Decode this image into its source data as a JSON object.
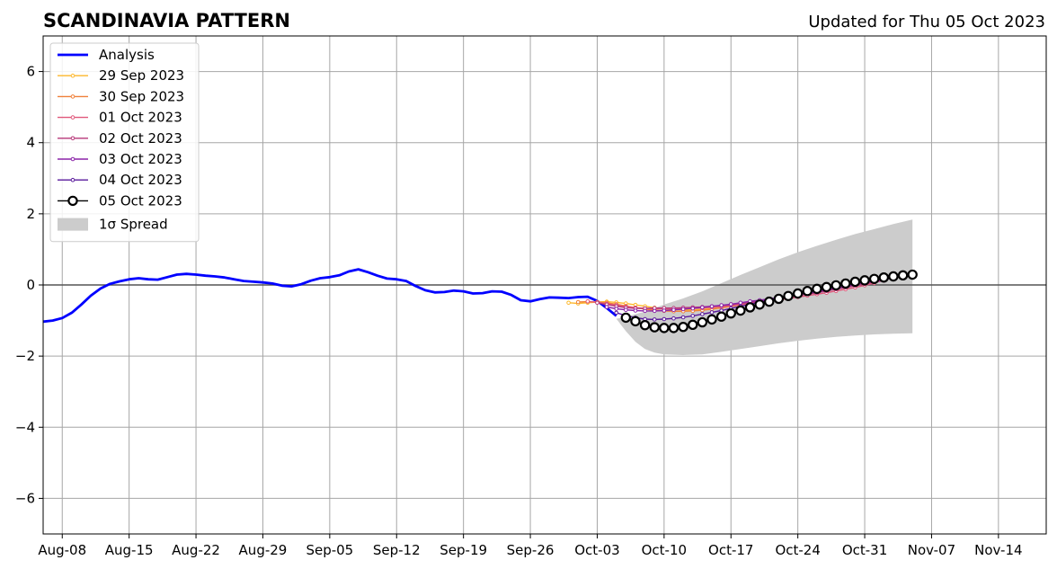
{
  "chart_data": {
    "type": "line",
    "title": "SCANDINAVIA PATTERN",
    "subtitle": "Updated for Thu 05 Oct 2023",
    "xlabel": "",
    "ylabel": "",
    "x_start_date": "2023-08-06",
    "xlim": [
      "2023-08-06",
      "2023-11-19"
    ],
    "ylim": [
      -7,
      7
    ],
    "yticks": [
      -6,
      -4,
      -2,
      0,
      2,
      4,
      6
    ],
    "ytick_labels": [
      "−6",
      "−4",
      "−2",
      "0",
      "2",
      "4",
      "6"
    ],
    "xticks": [
      "2023-08-08",
      "2023-08-15",
      "2023-08-22",
      "2023-08-29",
      "2023-09-05",
      "2023-09-12",
      "2023-09-19",
      "2023-09-26",
      "2023-10-03",
      "2023-10-10",
      "2023-10-17",
      "2023-10-24",
      "2023-10-31",
      "2023-11-07",
      "2023-11-14"
    ],
    "xtick_labels": [
      "Aug-08",
      "Aug-15",
      "Aug-22",
      "Aug-29",
      "Sep-05",
      "Sep-12",
      "Sep-19",
      "Sep-26",
      "Oct-03",
      "Oct-10",
      "Oct-17",
      "Oct-24",
      "Oct-31",
      "Nov-07",
      "Nov-14"
    ],
    "grid": true,
    "zero_line": true,
    "legend_position": "top-left",
    "series": [
      {
        "name": "Analysis",
        "color": "#0000ff",
        "style": "thick-line",
        "x": [
          "2023-08-06",
          "2023-08-07",
          "2023-08-08",
          "2023-08-09",
          "2023-08-10",
          "2023-08-11",
          "2023-08-12",
          "2023-08-13",
          "2023-08-14",
          "2023-08-15",
          "2023-08-16",
          "2023-08-17",
          "2023-08-18",
          "2023-08-19",
          "2023-08-20",
          "2023-08-21",
          "2023-08-22",
          "2023-08-23",
          "2023-08-24",
          "2023-08-25",
          "2023-08-26",
          "2023-08-27",
          "2023-08-28",
          "2023-08-29",
          "2023-08-30",
          "2023-08-31",
          "2023-09-01",
          "2023-09-02",
          "2023-09-03",
          "2023-09-04",
          "2023-09-05",
          "2023-09-06",
          "2023-09-07",
          "2023-09-08",
          "2023-09-09",
          "2023-09-10",
          "2023-09-11",
          "2023-09-12",
          "2023-09-13",
          "2023-09-14",
          "2023-09-15",
          "2023-09-16",
          "2023-09-17",
          "2023-09-18",
          "2023-09-19",
          "2023-09-20",
          "2023-09-21",
          "2023-09-22",
          "2023-09-23",
          "2023-09-24",
          "2023-09-25",
          "2023-09-26",
          "2023-09-27",
          "2023-09-28",
          "2023-09-29",
          "2023-09-30",
          "2023-10-01",
          "2023-10-02",
          "2023-10-03",
          "2023-10-04",
          "2023-10-05"
        ],
        "y": [
          -1.03,
          -1.0,
          -0.93,
          -0.78,
          -0.55,
          -0.3,
          -0.1,
          0.03,
          0.1,
          0.16,
          0.19,
          0.16,
          0.15,
          0.22,
          0.29,
          0.31,
          0.29,
          0.26,
          0.24,
          0.21,
          0.16,
          0.11,
          0.09,
          0.07,
          0.04,
          -0.02,
          -0.04,
          0.02,
          0.12,
          0.19,
          0.22,
          0.27,
          0.38,
          0.44,
          0.36,
          0.26,
          0.18,
          0.16,
          0.11,
          -0.03,
          -0.15,
          -0.21,
          -0.2,
          -0.16,
          -0.18,
          -0.24,
          -0.23,
          -0.18,
          -0.19,
          -0.28,
          -0.43,
          -0.46,
          -0.4,
          -0.35,
          -0.36,
          -0.37,
          -0.34,
          -0.33,
          -0.45,
          -0.65,
          -0.87
        ]
      },
      {
        "name": "29 Sep 2023",
        "color": "#fdb72b",
        "style": "thin-marker",
        "x": [
          "2023-09-30",
          "2023-10-01",
          "2023-10-02",
          "2023-10-03",
          "2023-10-04",
          "2023-10-05",
          "2023-10-06",
          "2023-10-07",
          "2023-10-08",
          "2023-10-09",
          "2023-10-10",
          "2023-10-11",
          "2023-10-12",
          "2023-10-13",
          "2023-10-14",
          "2023-10-15",
          "2023-10-16",
          "2023-10-17",
          "2023-10-18",
          "2023-10-19",
          "2023-10-20",
          "2023-10-21",
          "2023-10-22"
        ],
        "y": [
          -0.5,
          -0.52,
          -0.5,
          -0.48,
          -0.47,
          -0.49,
          -0.52,
          -0.56,
          -0.6,
          -0.64,
          -0.67,
          -0.69,
          -0.7,
          -0.7,
          -0.69,
          -0.67,
          -0.64,
          -0.6,
          -0.56,
          -0.52,
          -0.48,
          -0.44,
          -0.4
        ]
      },
      {
        "name": "30 Sep 2023",
        "color": "#f0803a",
        "style": "thin-marker",
        "x": [
          "2023-10-01",
          "2023-10-02",
          "2023-10-03",
          "2023-10-04",
          "2023-10-05",
          "2023-10-06",
          "2023-10-07",
          "2023-10-08",
          "2023-10-09",
          "2023-10-10",
          "2023-10-11",
          "2023-10-12",
          "2023-10-13",
          "2023-10-14",
          "2023-10-15",
          "2023-10-16",
          "2023-10-17",
          "2023-10-18",
          "2023-10-19",
          "2023-10-20",
          "2023-10-21",
          "2023-10-22",
          "2023-10-23"
        ],
        "y": [
          -0.48,
          -0.47,
          -0.48,
          -0.5,
          -0.54,
          -0.59,
          -0.64,
          -0.68,
          -0.71,
          -0.73,
          -0.74,
          -0.74,
          -0.73,
          -0.71,
          -0.68,
          -0.64,
          -0.6,
          -0.56,
          -0.52,
          -0.48,
          -0.44,
          -0.41,
          -0.38
        ]
      },
      {
        "name": "01 Oct 2023",
        "color": "#e0577a",
        "style": "thin-marker",
        "x": [
          "2023-10-02",
          "2023-10-03",
          "2023-10-04",
          "2023-10-05",
          "2023-10-06",
          "2023-10-07",
          "2023-10-08",
          "2023-10-09",
          "2023-10-10",
          "2023-10-11",
          "2023-10-12",
          "2023-10-13",
          "2023-10-14",
          "2023-10-15",
          "2023-10-16",
          "2023-10-17",
          "2023-10-18",
          "2023-10-19",
          "2023-10-20",
          "2023-10-21",
          "2023-10-22",
          "2023-10-23",
          "2023-10-24",
          "2023-10-25",
          "2023-10-26",
          "2023-10-27",
          "2023-10-28",
          "2023-10-29",
          "2023-10-30",
          "2023-10-31",
          "2023-11-01"
        ],
        "y": [
          -0.46,
          -0.49,
          -0.53,
          -0.57,
          -0.61,
          -0.64,
          -0.66,
          -0.67,
          -0.67,
          -0.67,
          -0.67,
          -0.66,
          -0.65,
          -0.63,
          -0.61,
          -0.58,
          -0.55,
          -0.52,
          -0.49,
          -0.46,
          -0.42,
          -0.38,
          -0.34,
          -0.3,
          -0.26,
          -0.22,
          -0.17,
          -0.12,
          -0.07,
          -0.01,
          0.05
        ]
      },
      {
        "name": "02 Oct 2023",
        "color": "#b73779",
        "style": "thin-marker",
        "x": [
          "2023-10-03",
          "2023-10-04",
          "2023-10-05",
          "2023-10-06",
          "2023-10-07",
          "2023-10-08",
          "2023-10-09",
          "2023-10-10",
          "2023-10-11",
          "2023-10-12",
          "2023-10-13",
          "2023-10-14",
          "2023-10-15",
          "2023-10-16",
          "2023-10-17",
          "2023-10-18",
          "2023-10-19",
          "2023-10-20",
          "2023-10-21",
          "2023-10-22",
          "2023-10-23",
          "2023-10-24",
          "2023-10-25",
          "2023-10-26",
          "2023-10-27",
          "2023-10-28",
          "2023-10-29",
          "2023-10-30",
          "2023-10-31",
          "2023-11-01",
          "2023-11-02"
        ],
        "y": [
          -0.5,
          -0.55,
          -0.6,
          -0.64,
          -0.66,
          -0.66,
          -0.65,
          -0.65,
          -0.65,
          -0.64,
          -0.63,
          -0.62,
          -0.6,
          -0.58,
          -0.55,
          -0.52,
          -0.49,
          -0.46,
          -0.42,
          -0.38,
          -0.34,
          -0.3,
          -0.26,
          -0.22,
          -0.17,
          -0.12,
          -0.07,
          -0.02,
          0.03,
          0.08,
          0.12
        ]
      },
      {
        "name": "03 Oct 2023",
        "color": "#8b24a8",
        "style": "thin-marker",
        "x": [
          "2023-10-04",
          "2023-10-05",
          "2023-10-06",
          "2023-10-07",
          "2023-10-08",
          "2023-10-09",
          "2023-10-10",
          "2023-10-11",
          "2023-10-12",
          "2023-10-13",
          "2023-10-14",
          "2023-10-15",
          "2023-10-16",
          "2023-10-17",
          "2023-10-18",
          "2023-10-19",
          "2023-10-20",
          "2023-10-21",
          "2023-10-22",
          "2023-10-23",
          "2023-10-24",
          "2023-10-25",
          "2023-10-26",
          "2023-10-27",
          "2023-10-28",
          "2023-10-29",
          "2023-10-30",
          "2023-10-31",
          "2023-11-01",
          "2023-11-02",
          "2023-11-03"
        ],
        "y": [
          -0.62,
          -0.67,
          -0.7,
          -0.72,
          -0.73,
          -0.73,
          -0.72,
          -0.7,
          -0.68,
          -0.66,
          -0.63,
          -0.6,
          -0.57,
          -0.54,
          -0.5,
          -0.46,
          -0.43,
          -0.39,
          -0.35,
          -0.31,
          -0.27,
          -0.23,
          -0.19,
          -0.14,
          -0.09,
          -0.04,
          0.01,
          0.06,
          0.1,
          0.15,
          0.2
        ]
      },
      {
        "name": "04 Oct 2023",
        "color": "#5a1a9c",
        "style": "thin-marker",
        "x": [
          "2023-10-05",
          "2023-10-06",
          "2023-10-07",
          "2023-10-08",
          "2023-10-09",
          "2023-10-10",
          "2023-10-11",
          "2023-10-12",
          "2023-10-13",
          "2023-10-14",
          "2023-10-15",
          "2023-10-16",
          "2023-10-17",
          "2023-10-18",
          "2023-10-19",
          "2023-10-20",
          "2023-10-21",
          "2023-10-22",
          "2023-10-23",
          "2023-10-24",
          "2023-10-25",
          "2023-10-26",
          "2023-10-27",
          "2023-10-28",
          "2023-10-29",
          "2023-10-30",
          "2023-10-31",
          "2023-11-01",
          "2023-11-02",
          "2023-11-03"
        ],
        "y": [
          -0.78,
          -0.86,
          -0.92,
          -0.96,
          -0.97,
          -0.96,
          -0.94,
          -0.91,
          -0.87,
          -0.82,
          -0.77,
          -0.72,
          -0.66,
          -0.6,
          -0.54,
          -0.48,
          -0.42,
          -0.36,
          -0.3,
          -0.24,
          -0.19,
          -0.14,
          -0.09,
          -0.04,
          0.01,
          0.06,
          0.1,
          0.15,
          0.19,
          0.23
        ]
      },
      {
        "name": "05 Oct 2023",
        "color": "#000000",
        "style": "large-circle",
        "x": [
          "2023-10-06",
          "2023-10-07",
          "2023-10-08",
          "2023-10-09",
          "2023-10-10",
          "2023-10-11",
          "2023-10-12",
          "2023-10-13",
          "2023-10-14",
          "2023-10-15",
          "2023-10-16",
          "2023-10-17",
          "2023-10-18",
          "2023-10-19",
          "2023-10-20",
          "2023-10-21",
          "2023-10-22",
          "2023-10-23",
          "2023-10-24",
          "2023-10-25",
          "2023-10-26",
          "2023-10-27",
          "2023-10-28",
          "2023-10-29",
          "2023-10-30",
          "2023-10-31",
          "2023-11-01",
          "2023-11-02",
          "2023-11-03",
          "2023-11-04",
          "2023-11-05"
        ],
        "y": [
          -0.92,
          -1.02,
          -1.13,
          -1.19,
          -1.21,
          -1.21,
          -1.18,
          -1.12,
          -1.05,
          -0.97,
          -0.89,
          -0.8,
          -0.72,
          -0.63,
          -0.55,
          -0.47,
          -0.39,
          -0.31,
          -0.24,
          -0.17,
          -0.11,
          -0.06,
          -0.01,
          0.04,
          0.09,
          0.13,
          0.17,
          0.21,
          0.24,
          0.27,
          0.29
        ]
      }
    ],
    "spread": {
      "name": "1σ Spread",
      "color": "#cccccc",
      "x": [
        "2023-10-05",
        "2023-10-06",
        "2023-10-07",
        "2023-10-08",
        "2023-10-09",
        "2023-10-10",
        "2023-10-12",
        "2023-10-14",
        "2023-10-16",
        "2023-10-18",
        "2023-10-20",
        "2023-10-22",
        "2023-10-24",
        "2023-10-26",
        "2023-10-28",
        "2023-10-30",
        "2023-11-01",
        "2023-11-03",
        "2023-11-05"
      ],
      "upper": [
        -0.95,
        -0.9,
        -0.82,
        -0.75,
        -0.65,
        -0.55,
        -0.38,
        -0.18,
        0.05,
        0.28,
        0.5,
        0.72,
        0.92,
        1.1,
        1.27,
        1.43,
        1.57,
        1.71,
        1.84
      ],
      "lower": [
        -0.95,
        -1.3,
        -1.6,
        -1.8,
        -1.9,
        -1.95,
        -1.97,
        -1.95,
        -1.88,
        -1.8,
        -1.72,
        -1.64,
        -1.57,
        -1.51,
        -1.46,
        -1.42,
        -1.39,
        -1.37,
        -1.36
      ]
    }
  }
}
